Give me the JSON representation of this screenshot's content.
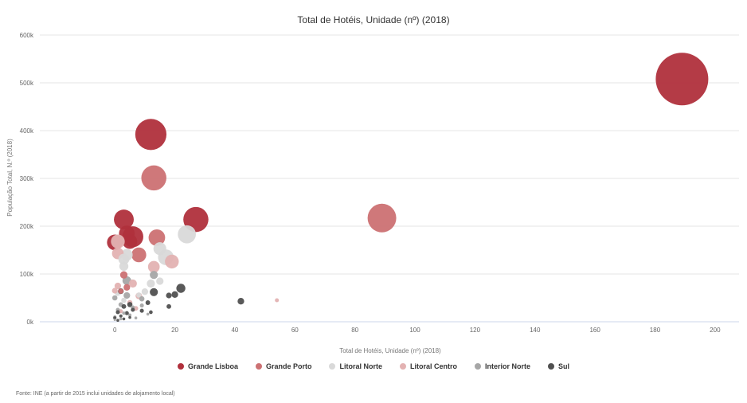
{
  "chart_data": {
    "type": "scatter",
    "title": "Total de Hotéis, Unidade (nº) (2018)",
    "xlabel": "Total de Hotéis, Unidade (nº) (2018)",
    "ylabel": "População Total, N.º (2018)",
    "xlim": [
      -25,
      208
    ],
    "ylim": [
      0,
      600000
    ],
    "x_ticks": [
      0,
      20,
      40,
      60,
      80,
      100,
      120,
      140,
      160,
      180,
      200
    ],
    "y_ticks": [
      0,
      100000,
      200000,
      300000,
      400000,
      500000,
      600000
    ],
    "y_tick_labels": [
      "0k",
      "100k",
      "200k",
      "300k",
      "400k",
      "500k",
      "600k"
    ],
    "grid": true,
    "legend_position": "bottom-center",
    "series": [
      {
        "name": "Grande Lisboa",
        "color": "#b0303c",
        "points": [
          {
            "x": 189,
            "y": 508000,
            "size": 505000
          },
          {
            "x": 12,
            "y": 392000,
            "size": 178000
          },
          {
            "x": 3,
            "y": 214000,
            "size": 72000
          },
          {
            "x": 27,
            "y": 214000,
            "size": 115000
          },
          {
            "x": 0,
            "y": 166000,
            "size": 45000
          },
          {
            "x": 4,
            "y": 185000,
            "size": 45000
          },
          {
            "x": 6,
            "y": 178000,
            "size": 80000
          },
          {
            "x": 5,
            "y": 168000,
            "size": 40000
          }
        ]
      },
      {
        "name": "Grande Porto",
        "color": "#cc7173",
        "points": [
          {
            "x": 89,
            "y": 217000,
            "size": 150000
          },
          {
            "x": 13,
            "y": 301000,
            "size": 115000
          },
          {
            "x": 14,
            "y": 176000,
            "size": 50000
          },
          {
            "x": 8,
            "y": 140000,
            "size": 40000
          },
          {
            "x": 3,
            "y": 98000,
            "size": 10000
          },
          {
            "x": 4,
            "y": 72000,
            "size": 8000
          },
          {
            "x": 2,
            "y": 64000,
            "size": 5000
          }
        ]
      },
      {
        "name": "Litoral Norte",
        "color": "#d9d9d9",
        "points": [
          {
            "x": 24,
            "y": 183000,
            "size": 60000
          },
          {
            "x": 17,
            "y": 135000,
            "size": 45000
          },
          {
            "x": 15,
            "y": 153000,
            "size": 30000
          },
          {
            "x": 4,
            "y": 140000,
            "size": 25000
          },
          {
            "x": 3,
            "y": 131000,
            "size": 22000
          },
          {
            "x": 3,
            "y": 116000,
            "size": 15000
          },
          {
            "x": 15,
            "y": 85000,
            "size": 10000
          },
          {
            "x": 12,
            "y": 80000,
            "size": 12000
          },
          {
            "x": 10,
            "y": 63000,
            "size": 8000
          },
          {
            "x": 1,
            "y": 60000,
            "size": 6000
          },
          {
            "x": 8,
            "y": 56000,
            "size": 5000
          },
          {
            "x": 3,
            "y": 45000,
            "size": 5000
          }
        ]
      },
      {
        "name": "Litoral Centro",
        "color": "#e3b2b2",
        "points": [
          {
            "x": 1,
            "y": 168000,
            "size": 35000
          },
          {
            "x": 1,
            "y": 143000,
            "size": 25000
          },
          {
            "x": 19,
            "y": 126000,
            "size": 35000
          },
          {
            "x": 13,
            "y": 115000,
            "size": 25000
          },
          {
            "x": 6,
            "y": 80000,
            "size": 12000
          },
          {
            "x": 1,
            "y": 75000,
            "size": 8000
          },
          {
            "x": 0,
            "y": 65000,
            "size": 6000
          },
          {
            "x": 54,
            "y": 45000,
            "size": 3000
          },
          {
            "x": 8,
            "y": 54000,
            "size": 8000
          },
          {
            "x": 5,
            "y": 40000,
            "size": 5000
          },
          {
            "x": 7,
            "y": 28000,
            "size": 4000
          },
          {
            "x": 2,
            "y": 22000,
            "size": 3000
          }
        ]
      },
      {
        "name": "Interior Norte",
        "color": "#a6a6a6",
        "points": [
          {
            "x": 13,
            "y": 98000,
            "size": 12000
          },
          {
            "x": 4,
            "y": 86000,
            "size": 14000
          },
          {
            "x": 4,
            "y": 55000,
            "size": 8000
          },
          {
            "x": 9,
            "y": 48000,
            "size": 5000
          },
          {
            "x": 0,
            "y": 50000,
            "size": 5000
          },
          {
            "x": 2,
            "y": 36000,
            "size": 4000
          },
          {
            "x": 6,
            "y": 30000,
            "size": 3000
          },
          {
            "x": 9,
            "y": 34000,
            "size": 3000
          },
          {
            "x": 1,
            "y": 25000,
            "size": 3000
          },
          {
            "x": 3,
            "y": 18000,
            "size": 2000
          },
          {
            "x": 5,
            "y": 14000,
            "size": 2000
          },
          {
            "x": 0,
            "y": 10000,
            "size": 2000
          },
          {
            "x": 7,
            "y": 8000,
            "size": 1500
          },
          {
            "x": 2,
            "y": 6000,
            "size": 1500
          },
          {
            "x": 11,
            "y": 16000,
            "size": 1500
          },
          {
            "x": 0,
            "y": 4000,
            "size": 1000
          }
        ]
      },
      {
        "name": "Sul",
        "color": "#505050",
        "points": [
          {
            "x": 22,
            "y": 70000,
            "size": 15000
          },
          {
            "x": 13,
            "y": 62000,
            "size": 12000
          },
          {
            "x": 20,
            "y": 57000,
            "size": 8000
          },
          {
            "x": 18,
            "y": 55000,
            "size": 6000
          },
          {
            "x": 42,
            "y": 43000,
            "size": 8000
          },
          {
            "x": 2,
            "y": 64000,
            "size": 6000
          },
          {
            "x": 5,
            "y": 36000,
            "size": 5000
          },
          {
            "x": 11,
            "y": 40000,
            "size": 4000
          },
          {
            "x": 18,
            "y": 32000,
            "size": 4000
          },
          {
            "x": 3,
            "y": 32000,
            "size": 4000
          },
          {
            "x": 6,
            "y": 25000,
            "size": 3000
          },
          {
            "x": 9,
            "y": 23000,
            "size": 3000
          },
          {
            "x": 1,
            "y": 20000,
            "size": 3000
          },
          {
            "x": 4,
            "y": 18000,
            "size": 3000
          },
          {
            "x": 12,
            "y": 20000,
            "size": 2500
          },
          {
            "x": 2,
            "y": 12000,
            "size": 2000
          },
          {
            "x": 0,
            "y": 8000,
            "size": 2000
          },
          {
            "x": 3,
            "y": 6000,
            "size": 1500
          },
          {
            "x": 5,
            "y": 9000,
            "size": 1500
          },
          {
            "x": 1,
            "y": 3000,
            "size": 1500
          }
        ]
      }
    ]
  },
  "source_note": "Fonte: INE (a partir de 2015 inclui unidades de alojamento local)"
}
